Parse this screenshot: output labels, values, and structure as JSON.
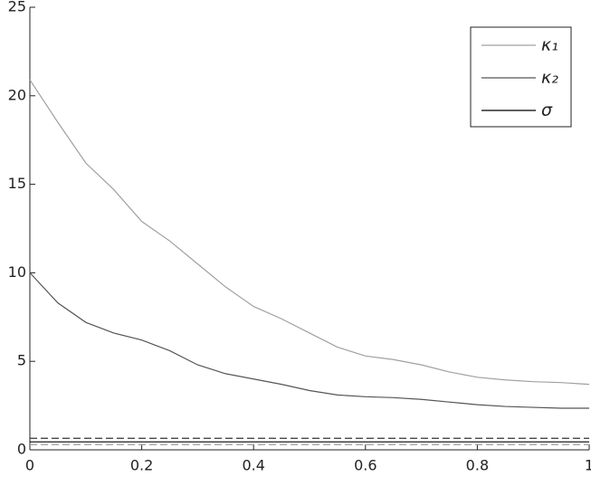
{
  "chart_data": {
    "type": "line",
    "x": [
      0,
      0.05,
      0.1,
      0.15,
      0.2,
      0.25,
      0.3,
      0.35,
      0.4,
      0.45,
      0.5,
      0.55,
      0.6,
      0.65,
      0.7,
      0.75,
      0.8,
      0.85,
      0.9,
      0.95,
      1
    ],
    "series": [
      {
        "name": "κ₁",
        "color": "#a0a0a0",
        "dash": false,
        "values": [
          20.9,
          18.5,
          16.2,
          14.7,
          12.9,
          11.8,
          10.5,
          9.2,
          8.1,
          7.4,
          6.6,
          5.8,
          5.3,
          5.1,
          4.8,
          4.4,
          4.1,
          3.95,
          3.85,
          3.8,
          3.7
        ]
      },
      {
        "name": "κ₂",
        "color": "#555555",
        "dash": false,
        "values": [
          10,
          8.3,
          7.2,
          6.6,
          6.2,
          5.6,
          4.8,
          4.3,
          4.0,
          3.7,
          3.35,
          3.1,
          3.0,
          2.95,
          2.85,
          2.7,
          2.55,
          2.45,
          2.4,
          2.35,
          2.35
        ]
      },
      {
        "name": "σ",
        "color": "#000000",
        "dash": false,
        "values": [
          0.45,
          0.45,
          0.45,
          0.45,
          0.45,
          0.45,
          0.45,
          0.45,
          0.45,
          0.45,
          0.45,
          0.45,
          0.45,
          0.45,
          0.45,
          0.45,
          0.45,
          0.45,
          0.45,
          0.45,
          0.45
        ]
      },
      {
        "color": "#333333",
        "dash": true,
        "values": [
          0.65,
          0.65,
          0.65,
          0.65,
          0.65,
          0.65,
          0.65,
          0.65,
          0.65,
          0.65,
          0.65,
          0.65,
          0.65,
          0.65,
          0.65,
          0.65,
          0.65,
          0.65,
          0.65,
          0.65,
          0.65
        ]
      },
      {
        "color": "#999999",
        "dash": true,
        "values": [
          0.3,
          0.3,
          0.3,
          0.3,
          0.3,
          0.3,
          0.3,
          0.3,
          0.3,
          0.3,
          0.3,
          0.3,
          0.3,
          0.3,
          0.3,
          0.3,
          0.3,
          0.3,
          0.3,
          0.3,
          0.3
        ]
      }
    ],
    "xlim": [
      0,
      1
    ],
    "xticks": [
      0,
      0.2,
      0.4,
      0.6,
      0.8,
      1
    ],
    "ylim": [
      0,
      25
    ],
    "yticks": [
      0,
      5,
      10,
      15,
      20,
      25
    ],
    "legend": "top-right"
  }
}
